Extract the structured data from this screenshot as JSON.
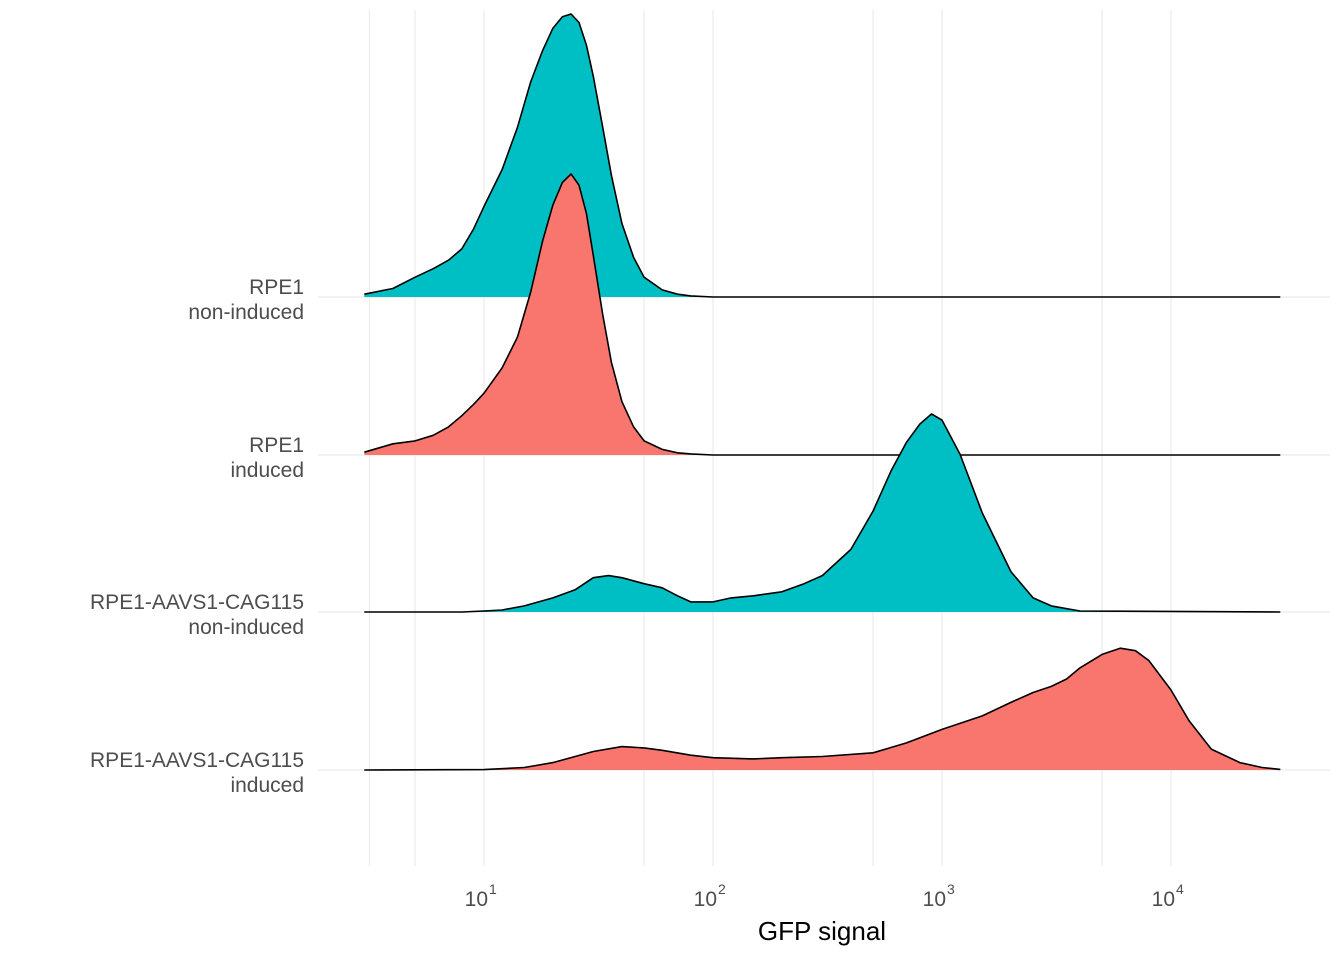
{
  "chart_data": {
    "type": "ridgeline",
    "xlabel": "GFP signal",
    "ylabel": "",
    "x_scale": "log10",
    "xlim": [
      3,
      30000
    ],
    "x_ticks": [
      {
        "value": 10,
        "base": "10",
        "exp": "1"
      },
      {
        "value": 100,
        "base": "10",
        "exp": "2"
      },
      {
        "value": 1000,
        "base": "10",
        "exp": "3"
      },
      {
        "value": 10000,
        "base": "10",
        "exp": "4"
      }
    ],
    "grid": true,
    "colors": {
      "induced": "#F8766D",
      "non-induced": "#00BFC4"
    },
    "series": [
      {
        "label_line1": "RPE1",
        "label_line2": "non-induced",
        "condition": "non-induced",
        "x": [
          3,
          4,
          5,
          6,
          7,
          8,
          9,
          10,
          12,
          14,
          16,
          18,
          20,
          22,
          24,
          26,
          28,
          30,
          33,
          36,
          40,
          45,
          50,
          60,
          70,
          80,
          100,
          30000
        ],
        "density": [
          0.01,
          0.03,
          0.07,
          0.1,
          0.13,
          0.17,
          0.24,
          0.32,
          0.45,
          0.6,
          0.76,
          0.87,
          0.95,
          0.99,
          1.0,
          0.97,
          0.89,
          0.78,
          0.6,
          0.43,
          0.26,
          0.14,
          0.07,
          0.025,
          0.01,
          0.004,
          0,
          0
        ]
      },
      {
        "label_line1": "RPE1",
        "label_line2": "induced",
        "condition": "induced",
        "x": [
          3,
          4,
          5,
          6,
          7,
          8,
          9,
          10,
          12,
          14,
          16,
          18,
          20,
          22,
          24,
          26,
          28,
          30,
          33,
          36,
          40,
          45,
          50,
          60,
          70,
          80,
          100,
          30000
        ],
        "density": [
          0.01,
          0.04,
          0.05,
          0.07,
          0.1,
          0.14,
          0.18,
          0.22,
          0.31,
          0.42,
          0.58,
          0.76,
          0.89,
          0.97,
          1.0,
          0.96,
          0.86,
          0.71,
          0.5,
          0.33,
          0.19,
          0.1,
          0.05,
          0.02,
          0.008,
          0.004,
          0,
          0
        ]
      },
      {
        "label_line1": "RPE1-AAVS1-CAG115",
        "label_line2": "non-induced",
        "condition": "non-induced",
        "x": [
          3,
          8,
          10,
          12,
          15,
          20,
          25,
          30,
          35,
          40,
          50,
          60,
          70,
          80,
          100,
          120,
          150,
          200,
          250,
          300,
          400,
          500,
          600,
          700,
          800,
          900,
          1000,
          1200,
          1500,
          2000,
          2500,
          3000,
          4000,
          30000
        ],
        "density": [
          0,
          0,
          0.005,
          0.01,
          0.03,
          0.07,
          0.11,
          0.17,
          0.18,
          0.17,
          0.14,
          0.12,
          0.08,
          0.05,
          0.05,
          0.07,
          0.08,
          0.1,
          0.14,
          0.18,
          0.31,
          0.5,
          0.7,
          0.84,
          0.93,
          0.98,
          0.95,
          0.78,
          0.49,
          0.2,
          0.07,
          0.03,
          0.005,
          0
        ]
      },
      {
        "label_line1": "RPE1-AAVS1-CAG115",
        "label_line2": "induced",
        "condition": "induced",
        "x": [
          3,
          10,
          15,
          20,
          30,
          40,
          50,
          60,
          80,
          100,
          150,
          200,
          300,
          500,
          700,
          1000,
          1500,
          2000,
          2500,
          3000,
          3500,
          4000,
          5000,
          6000,
          7000,
          8000,
          10000,
          12000,
          15000,
          20000,
          25000,
          30000
        ],
        "density": [
          0,
          0.003,
          0.02,
          0.06,
          0.15,
          0.19,
          0.18,
          0.16,
          0.12,
          0.1,
          0.09,
          0.1,
          0.11,
          0.14,
          0.22,
          0.33,
          0.44,
          0.55,
          0.63,
          0.68,
          0.74,
          0.83,
          0.94,
          0.99,
          0.97,
          0.89,
          0.65,
          0.4,
          0.17,
          0.06,
          0.02,
          0.005
        ]
      }
    ]
  }
}
